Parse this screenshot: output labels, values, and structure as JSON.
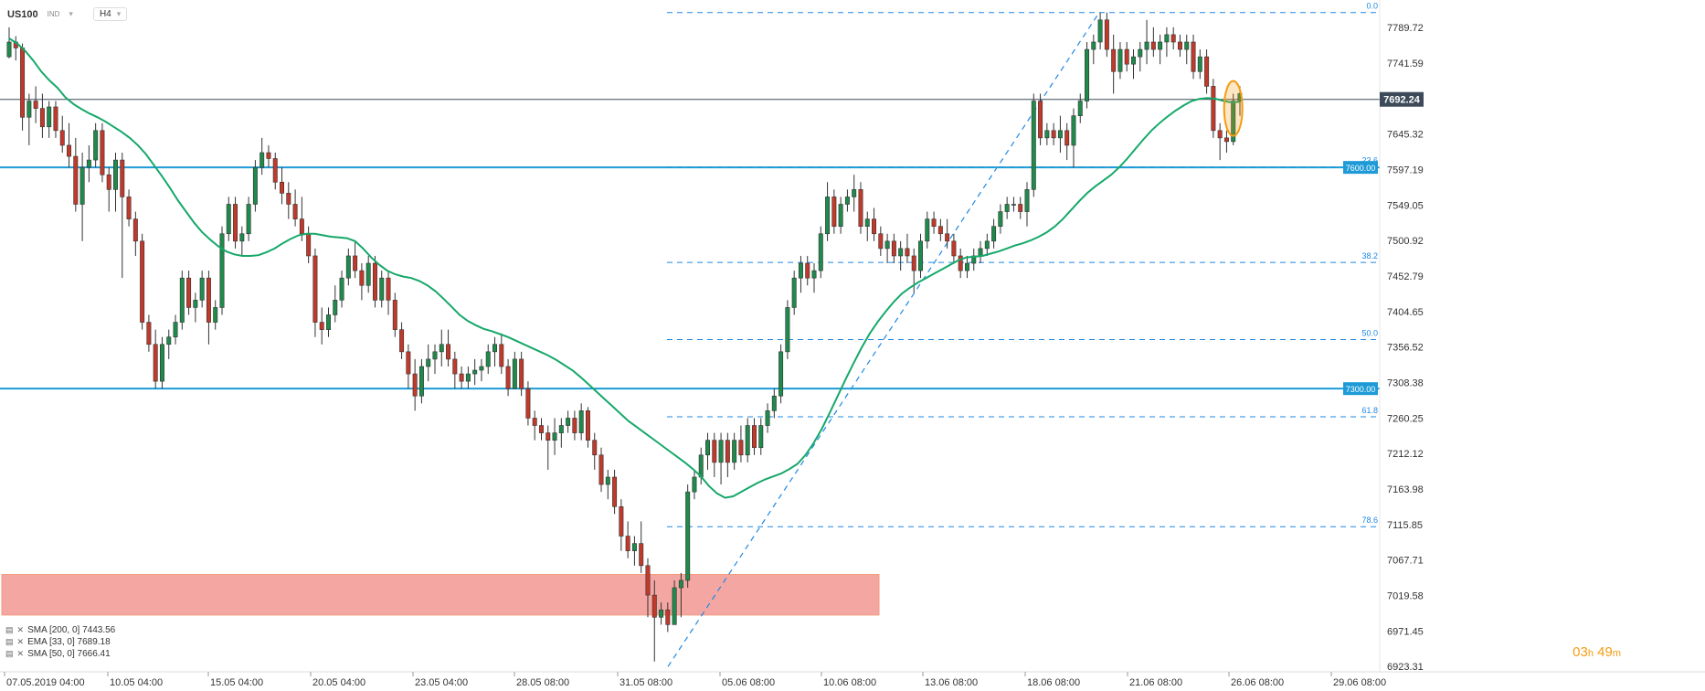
{
  "header": {
    "symbol": "US100",
    "tag": "IND",
    "timeframe": "H4"
  },
  "current_price": "7692.24",
  "countdown": {
    "hours": "03",
    "h_unit": "h",
    "minutes": "49",
    "m_unit": "m"
  },
  "indicators": [
    {
      "label": "SMA [200, 0] 7443.56"
    },
    {
      "label": "EMA [33, 0] 7689.18"
    },
    {
      "label": "SMA [50, 0] 7666.41"
    }
  ],
  "colors": {
    "bull": "#1f8a4c",
    "bear": "#c0392b",
    "ema": "#16a86a",
    "level": "#1e9bd7",
    "fib": "#1e88e5",
    "zone": "#f4a7a2",
    "highlight": "#f39c12",
    "price_line": "#3c4a5a"
  },
  "chart_data": {
    "type": "candlestick",
    "y_axis": {
      "ticks": [
        7789.72,
        7741.59,
        7693.46,
        7645.32,
        7597.19,
        7549.05,
        7500.92,
        7452.79,
        7404.65,
        7356.52,
        7308.38,
        7260.25,
        7212.12,
        7163.98,
        7115.85,
        7067.71,
        7019.58,
        6971.45,
        6923.31
      ],
      "tick_labels": [
        "7789.72",
        "7741.59",
        "",
        "7645.32",
        "7597.19",
        "7549.05",
        "7500.92",
        "7452.79",
        "7404.65",
        "7356.52",
        "7308.38",
        "7260.25",
        "7212.12",
        "7163.98",
        "7115.85",
        "7067.71",
        "7019.58",
        "6971.45",
        "6923.31"
      ],
      "ylim": [
        6916,
        7827
      ]
    },
    "x_axis": {
      "labels": [
        "07.05.2019 04:00",
        "10.05 04:00",
        "15.05 04:00",
        "20.05 04:00",
        "23.05 04:00",
        "28.05 08:00",
        "31.05 08:00",
        "05.06 08:00",
        "10.06 08:00",
        "13.06 08:00",
        "18.06 08:00",
        "21.06 08:00",
        "26.06 08:00",
        "29.06 08:00"
      ]
    },
    "horizontal_levels": [
      {
        "value": 7600.0,
        "label": "7600.00"
      },
      {
        "value": 7300.0,
        "label": "7300.00"
      }
    ],
    "fibonacci": {
      "high": 7810,
      "low": 6923,
      "levels": [
        {
          "ratio": 0.0,
          "label": "0.0"
        },
        {
          "ratio": 0.236,
          "label": "23.6"
        },
        {
          "ratio": 0.382,
          "label": "38.2"
        },
        {
          "ratio": 0.5,
          "label": "50.0"
        },
        {
          "ratio": 0.618,
          "label": "61.8"
        },
        {
          "ratio": 0.786,
          "label": "78.6"
        }
      ]
    },
    "support_zone": {
      "low": 6993,
      "high": 7048
    },
    "series": [
      {
        "name": "EMA [33, 0]",
        "values": [
          7775,
          7768,
          7758,
          7745,
          7730,
          7718,
          7708,
          7695,
          7686,
          7679,
          7673,
          7668,
          7662,
          7655,
          7648,
          7640,
          7630,
          7618,
          7603,
          7588,
          7572,
          7555,
          7540,
          7525,
          7512,
          7502,
          7493,
          7486,
          7482,
          7480,
          7480,
          7481,
          7485,
          7490,
          7497,
          7503,
          7508,
          7510,
          7510,
          7508,
          7506,
          7505,
          7504,
          7500,
          7490,
          7478,
          7468,
          7460,
          7455,
          7452,
          7450,
          7446,
          7440,
          7432,
          7422,
          7411,
          7400,
          7392,
          7386,
          7381,
          7378,
          7374,
          7370,
          7365,
          7360,
          7355,
          7350,
          7345,
          7339,
          7332,
          7325,
          7316,
          7306,
          7296,
          7286,
          7276,
          7266,
          7256,
          7248,
          7240,
          7232,
          7224,
          7216,
          7208,
          7200,
          7191,
          7181,
          7168,
          7158,
          7152,
          7154,
          7160,
          7166,
          7172,
          7177,
          7181,
          7185,
          7191,
          7198,
          7210,
          7226,
          7245,
          7267,
          7290,
          7313,
          7335,
          7356,
          7375,
          7391,
          7405,
          7418,
          7429,
          7437,
          7444,
          7450,
          7456,
          7462,
          7468,
          7474,
          7478,
          7479,
          7480,
          7483,
          7486,
          7490,
          7494,
          7497,
          7501,
          7506,
          7512,
          7520,
          7530,
          7542,
          7554,
          7565,
          7574,
          7582,
          7590,
          7600,
          7612,
          7625,
          7638,
          7650,
          7660,
          7669,
          7677,
          7684,
          7690,
          7693,
          7694,
          7693,
          7690,
          7688,
          7689
        ]
      }
    ],
    "candles": [
      [
        7750,
        7790,
        7748,
        7770
      ],
      [
        7770,
        7778,
        7745,
        7762
      ],
      [
        7762,
        7768,
        7650,
        7668
      ],
      [
        7668,
        7700,
        7630,
        7690
      ],
      [
        7690,
        7710,
        7660,
        7680
      ],
      [
        7680,
        7700,
        7640,
        7655
      ],
      [
        7655,
        7690,
        7640,
        7682
      ],
      [
        7682,
        7690,
        7640,
        7650
      ],
      [
        7650,
        7670,
        7620,
        7630
      ],
      [
        7630,
        7660,
        7600,
        7615
      ],
      [
        7615,
        7640,
        7540,
        7550
      ],
      [
        7550,
        7620,
        7500,
        7600
      ],
      [
        7600,
        7630,
        7580,
        7610
      ],
      [
        7610,
        7660,
        7600,
        7650
      ],
      [
        7650,
        7660,
        7580,
        7590
      ],
      [
        7590,
        7600,
        7540,
        7570
      ],
      [
        7570,
        7620,
        7540,
        7610
      ],
      [
        7610,
        7620,
        7450,
        7560
      ],
      [
        7560,
        7570,
        7520,
        7530
      ],
      [
        7530,
        7540,
        7480,
        7500
      ],
      [
        7500,
        7510,
        7380,
        7390
      ],
      [
        7390,
        7400,
        7350,
        7360
      ],
      [
        7360,
        7380,
        7300,
        7310
      ],
      [
        7310,
        7370,
        7300,
        7360
      ],
      [
        7360,
        7380,
        7340,
        7370
      ],
      [
        7370,
        7400,
        7360,
        7390
      ],
      [
        7390,
        7460,
        7380,
        7450
      ],
      [
        7450,
        7460,
        7400,
        7410
      ],
      [
        7410,
        7430,
        7390,
        7420
      ],
      [
        7420,
        7460,
        7410,
        7450
      ],
      [
        7450,
        7460,
        7360,
        7390
      ],
      [
        7390,
        7420,
        7380,
        7410
      ],
      [
        7410,
        7520,
        7400,
        7510
      ],
      [
        7510,
        7560,
        7500,
        7550
      ],
      [
        7550,
        7560,
        7490,
        7500
      ],
      [
        7500,
        7520,
        7480,
        7510
      ],
      [
        7510,
        7560,
        7500,
        7550
      ],
      [
        7550,
        7610,
        7540,
        7600
      ],
      [
        7600,
        7640,
        7590,
        7620
      ],
      [
        7620,
        7630,
        7600,
        7612
      ],
      [
        7612,
        7620,
        7570,
        7580
      ],
      [
        7580,
        7600,
        7550,
        7565
      ],
      [
        7565,
        7580,
        7530,
        7550
      ],
      [
        7550,
        7570,
        7520,
        7530
      ],
      [
        7530,
        7560,
        7500,
        7510
      ],
      [
        7510,
        7520,
        7470,
        7480
      ],
      [
        7480,
        7490,
        7370,
        7390
      ],
      [
        7390,
        7410,
        7360,
        7380
      ],
      [
        7380,
        7410,
        7370,
        7400
      ],
      [
        7400,
        7440,
        7390,
        7420
      ],
      [
        7420,
        7460,
        7410,
        7450
      ],
      [
        7450,
        7490,
        7440,
        7480
      ],
      [
        7480,
        7500,
        7450,
        7460
      ],
      [
        7460,
        7470,
        7420,
        7440
      ],
      [
        7440,
        7480,
        7430,
        7470
      ],
      [
        7470,
        7480,
        7410,
        7420
      ],
      [
        7420,
        7460,
        7410,
        7450
      ],
      [
        7450,
        7460,
        7400,
        7420
      ],
      [
        7420,
        7430,
        7370,
        7380
      ],
      [
        7380,
        7390,
        7340,
        7350
      ],
      [
        7350,
        7360,
        7300,
        7320
      ],
      [
        7320,
        7340,
        7270,
        7290
      ],
      [
        7290,
        7340,
        7280,
        7330
      ],
      [
        7330,
        7360,
        7310,
        7340
      ],
      [
        7340,
        7360,
        7320,
        7350
      ],
      [
        7350,
        7380,
        7330,
        7360
      ],
      [
        7360,
        7380,
        7330,
        7340
      ],
      [
        7340,
        7350,
        7300,
        7320
      ],
      [
        7320,
        7330,
        7300,
        7310
      ],
      [
        7310,
        7330,
        7300,
        7320
      ],
      [
        7320,
        7340,
        7305,
        7325
      ],
      [
        7325,
        7340,
        7310,
        7330
      ],
      [
        7330,
        7360,
        7320,
        7350
      ],
      [
        7350,
        7370,
        7330,
        7360
      ],
      [
        7360,
        7375,
        7320,
        7330
      ],
      [
        7330,
        7340,
        7290,
        7300
      ],
      [
        7300,
        7350,
        7300,
        7340
      ],
      [
        7340,
        7350,
        7290,
        7300
      ],
      [
        7300,
        7310,
        7250,
        7260
      ],
      [
        7260,
        7270,
        7230,
        7250
      ],
      [
        7250,
        7260,
        7230,
        7240
      ],
      [
        7240,
        7250,
        7190,
        7230
      ],
      [
        7230,
        7260,
        7210,
        7240
      ],
      [
        7240,
        7260,
        7220,
        7250
      ],
      [
        7250,
        7270,
        7240,
        7260
      ],
      [
        7260,
        7270,
        7230,
        7240
      ],
      [
        7240,
        7280,
        7230,
        7270
      ],
      [
        7270,
        7275,
        7220,
        7230
      ],
      [
        7230,
        7240,
        7190,
        7210
      ],
      [
        7210,
        7220,
        7160,
        7170
      ],
      [
        7170,
        7190,
        7150,
        7180
      ],
      [
        7180,
        7190,
        7130,
        7140
      ],
      [
        7140,
        7150,
        7080,
        7100
      ],
      [
        7100,
        7120,
        7070,
        7080
      ],
      [
        7080,
        7100,
        7060,
        7090
      ],
      [
        7090,
        7120,
        7050,
        7060
      ],
      [
        7060,
        7070,
        6990,
        7020
      ],
      [
        7020,
        7040,
        6930,
        6990
      ],
      [
        6990,
        7010,
        6980,
        7000
      ],
      [
        7000,
        7010,
        6970,
        6980
      ],
      [
        6980,
        7040,
        6980,
        7030
      ],
      [
        7030,
        7050,
        6990,
        7040
      ],
      [
        7040,
        7170,
        7030,
        7160
      ],
      [
        7160,
        7190,
        7150,
        7180
      ],
      [
        7180,
        7220,
        7170,
        7210
      ],
      [
        7210,
        7240,
        7190,
        7230
      ],
      [
        7230,
        7240,
        7180,
        7200
      ],
      [
        7200,
        7240,
        7170,
        7230
      ],
      [
        7230,
        7240,
        7180,
        7200
      ],
      [
        7200,
        7240,
        7190,
        7230
      ],
      [
        7230,
        7250,
        7200,
        7210
      ],
      [
        7210,
        7260,
        7200,
        7250
      ],
      [
        7250,
        7260,
        7210,
        7220
      ],
      [
        7220,
        7260,
        7210,
        7250
      ],
      [
        7250,
        7280,
        7240,
        7270
      ],
      [
        7270,
        7300,
        7260,
        7290
      ],
      [
        7290,
        7360,
        7280,
        7350
      ],
      [
        7350,
        7420,
        7340,
        7410
      ],
      [
        7410,
        7460,
        7400,
        7450
      ],
      [
        7450,
        7480,
        7430,
        7470
      ],
      [
        7470,
        7480,
        7440,
        7450
      ],
      [
        7450,
        7470,
        7430,
        7460
      ],
      [
        7460,
        7520,
        7450,
        7510
      ],
      [
        7510,
        7580,
        7500,
        7560
      ],
      [
        7560,
        7570,
        7510,
        7520
      ],
      [
        7520,
        7560,
        7510,
        7550
      ],
      [
        7550,
        7570,
        7540,
        7560
      ],
      [
        7560,
        7590,
        7540,
        7570
      ],
      [
        7570,
        7580,
        7510,
        7520
      ],
      [
        7520,
        7540,
        7500,
        7530
      ],
      [
        7530,
        7545,
        7500,
        7510
      ],
      [
        7510,
        7520,
        7480,
        7490
      ],
      [
        7490,
        7510,
        7470,
        7500
      ],
      [
        7500,
        7510,
        7470,
        7480
      ],
      [
        7480,
        7500,
        7460,
        7490
      ],
      [
        7490,
        7510,
        7470,
        7480
      ],
      [
        7480,
        7490,
        7430,
        7460
      ],
      [
        7460,
        7510,
        7450,
        7500
      ],
      [
        7500,
        7540,
        7490,
        7530
      ],
      [
        7530,
        7540,
        7510,
        7520
      ],
      [
        7520,
        7530,
        7500,
        7510
      ],
      [
        7510,
        7530,
        7490,
        7500
      ],
      [
        7500,
        7510,
        7470,
        7480
      ],
      [
        7480,
        7490,
        7450,
        7460
      ],
      [
        7460,
        7480,
        7450,
        7470
      ],
      [
        7470,
        7490,
        7460,
        7480
      ],
      [
        7480,
        7500,
        7470,
        7490
      ],
      [
        7490,
        7510,
        7480,
        7500
      ],
      [
        7500,
        7530,
        7490,
        7520
      ],
      [
        7520,
        7550,
        7510,
        7540
      ],
      [
        7540,
        7560,
        7530,
        7550
      ],
      [
        7550,
        7560,
        7540,
        7550
      ],
      [
        7550,
        7560,
        7530,
        7540
      ],
      [
        7540,
        7580,
        7520,
        7570
      ],
      [
        7570,
        7700,
        7560,
        7690
      ],
      [
        7690,
        7700,
        7630,
        7640
      ],
      [
        7640,
        7660,
        7630,
        7650
      ],
      [
        7650,
        7660,
        7630,
        7640
      ],
      [
        7640,
        7670,
        7620,
        7650
      ],
      [
        7650,
        7660,
        7610,
        7630
      ],
      [
        7630,
        7680,
        7600,
        7670
      ],
      [
        7670,
        7700,
        7660,
        7690
      ],
      [
        7690,
        7770,
        7680,
        7760
      ],
      [
        7760,
        7780,
        7740,
        7770
      ],
      [
        7770,
        7810,
        7760,
        7800
      ],
      [
        7800,
        7810,
        7750,
        7760
      ],
      [
        7760,
        7780,
        7700,
        7730
      ],
      [
        7730,
        7770,
        7720,
        7760
      ],
      [
        7760,
        7770,
        7730,
        7740
      ],
      [
        7740,
        7760,
        7720,
        7750
      ],
      [
        7750,
        7770,
        7730,
        7760
      ],
      [
        7760,
        7800,
        7740,
        7770
      ],
      [
        7770,
        7790,
        7750,
        7760
      ],
      [
        7760,
        7780,
        7740,
        7770
      ],
      [
        7770,
        7790,
        7750,
        7780
      ],
      [
        7780,
        7790,
        7760,
        7770
      ],
      [
        7770,
        7780,
        7750,
        7760
      ],
      [
        7760,
        7780,
        7740,
        7770
      ],
      [
        7770,
        7780,
        7720,
        7730
      ],
      [
        7730,
        7760,
        7720,
        7750
      ],
      [
        7750,
        7760,
        7700,
        7710
      ],
      [
        7710,
        7720,
        7640,
        7650
      ],
      [
        7650,
        7660,
        7610,
        7640
      ],
      [
        7640,
        7650,
        7620,
        7635
      ],
      [
        7635,
        7700,
        7630,
        7690
      ],
      [
        7690,
        7710,
        7670,
        7700
      ]
    ]
  }
}
